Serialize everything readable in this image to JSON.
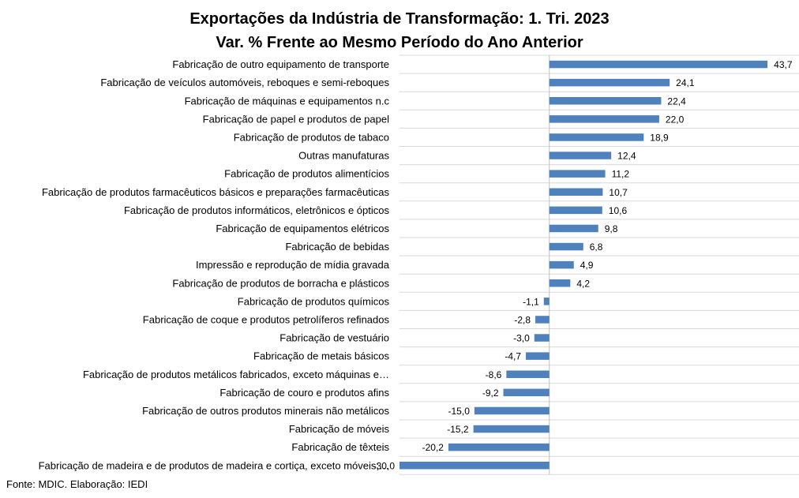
{
  "chart_data": {
    "type": "bar",
    "orientation": "horizontal",
    "title": "Exportações da Indústria de Transformação: 1. Tri. 2023",
    "subtitle": "Var. % Frente ao Mesmo Período do Ano Anterior",
    "categories": [
      "Fabricação de outro equipamento de transporte",
      "Fabricação de veículos automóveis, reboques e semi-reboques",
      "Fabricação de máquinas e equipamentos n.c",
      "Fabricação de papel e produtos de papel",
      "Fabricação de produtos de tabaco",
      "Outras manufaturas",
      "Fabricação de produtos alimentícios",
      "Fabricação de produtos farmacêuticos básicos e preparações farmacêuticas",
      "Fabricação de produtos informáticos, eletrônicos e ópticos",
      "Fabricação de equipamentos elétricos",
      "Fabricação de bebidas",
      "Impressão e reprodução de mídia gravada",
      "Fabricação de produtos de borracha e plásticos",
      "Fabricação de produtos químicos",
      "Fabricação de coque e produtos petrolíferos refinados",
      "Fabricação de vestuário",
      "Fabricação de metais básicos",
      "Fabricação de produtos metálicos fabricados, exceto máquinas e…",
      "Fabricação de couro e produtos afins",
      "Fabricação de outros produtos minerais não metálicos",
      "Fabricação de móveis",
      "Fabricação de têxteis",
      "Fabricação de madeira e de produtos de madeira e cortiça, exceto móveis;…"
    ],
    "values": [
      43.7,
      24.1,
      22.4,
      22.0,
      18.9,
      12.4,
      11.2,
      10.7,
      10.6,
      9.8,
      6.8,
      4.9,
      4.2,
      -1.1,
      -2.8,
      -3.0,
      -4.7,
      -8.6,
      -9.2,
      -15.0,
      -15.2,
      -20.2,
      -30.0
    ],
    "data_labels": [
      "43,7",
      "24,1",
      "22,4",
      "22,0",
      "18,9",
      "12,4",
      "11,2",
      "10,7",
      "10,6",
      "9,8",
      "6,8",
      "4,9",
      "4,2",
      "-1,1",
      "-2,8",
      "-3,0",
      "-4,7",
      "-8,6",
      "-9,2",
      "-15,0",
      "-15,2",
      "-20,2",
      "-30,0"
    ],
    "xlim": [
      -30,
      50
    ],
    "grid": true,
    "bar_color": "#4f81bd"
  },
  "source": "Fonte: MDIC. Elaboração: IEDI"
}
